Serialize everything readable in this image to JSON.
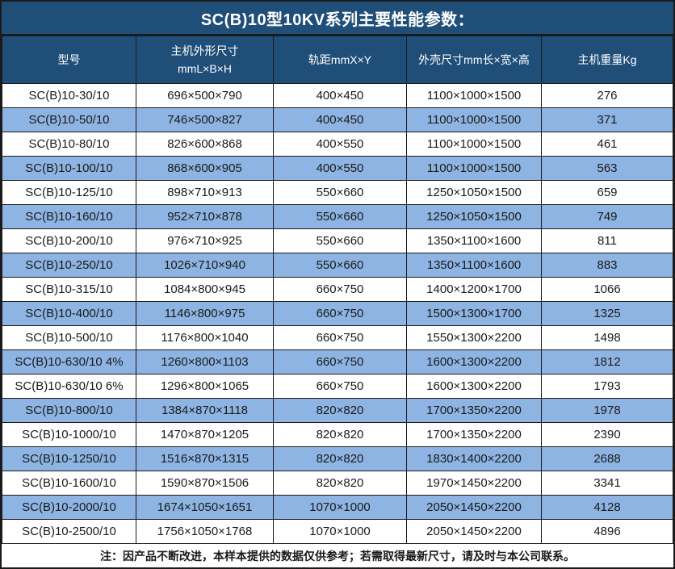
{
  "title": "SC(B)10型10KV系列主要性能参数：",
  "colors": {
    "header_bg": "#1F4E79",
    "row_alt_bg": "#8DB4E2",
    "row_bg": "#FFFFFF",
    "border": "#1A1A1A",
    "header_text": "#FFFFFF",
    "body_text": "#1A1A1A"
  },
  "table": {
    "columns": [
      {
        "label": "型号"
      },
      {
        "label": "主机外形尺寸\nmmL×B×H"
      },
      {
        "label": "轨距mmX×Y"
      },
      {
        "label": "外壳尺寸mm长×宽×高"
      },
      {
        "label": "主机重量Kg"
      }
    ],
    "rows": [
      [
        "SC(B)10-30/10",
        "696×500×790",
        "400×450",
        "1100×1000×1500",
        "276"
      ],
      [
        "SC(B)10-50/10",
        "746×500×827",
        "400×450",
        "1100×1000×1500",
        "371"
      ],
      [
        "SC(B)10-80/10",
        "826×600×868",
        "400×550",
        "1100×1000×1500",
        "461"
      ],
      [
        "SC(B)10-100/10",
        "868×600×905",
        "400×550",
        "1100×1000×1500",
        "563"
      ],
      [
        "SC(B)10-125/10",
        "898×710×913",
        "550×660",
        "1250×1050×1500",
        "659"
      ],
      [
        "SC(B)10-160/10",
        "952×710×878",
        "550×660",
        "1250×1050×1500",
        "749"
      ],
      [
        "SC(B)10-200/10",
        "976×710×925",
        "550×660",
        "1350×1100×1600",
        "811"
      ],
      [
        "SC(B)10-250/10",
        "1026×710×940",
        "550×660",
        "1350×1100×1600",
        "883"
      ],
      [
        "SC(B)10-315/10",
        "1084×800×945",
        "660×750",
        "1400×1200×1700",
        "1066"
      ],
      [
        "SC(B)10-400/10",
        "1146×800×975",
        "660×750",
        "1500×1300×1700",
        "1325"
      ],
      [
        "SC(B)10-500/10",
        "1176×800×1040",
        "660×750",
        "1550×1300×2200",
        "1498"
      ],
      [
        "SC(B)10-630/10 4%",
        "1260×800×1103",
        "660×750",
        "1600×1300×2200",
        "1812"
      ],
      [
        "SC(B)10-630/10 6%",
        "1296×800×1065",
        "660×750",
        "1600×1300×2200",
        "1793"
      ],
      [
        "SC(B)10-800/10",
        "1384×870×1118",
        "820×820",
        "1700×1350×2200",
        "1978"
      ],
      [
        "SC(B)10-1000/10",
        "1470×870×1205",
        "820×820",
        "1700×1350×2200",
        "2390"
      ],
      [
        "SC(B)10-1250/10",
        "1516×870×1315",
        "820×820",
        "1830×1400×2200",
        "2688"
      ],
      [
        "SC(B)10-1600/10",
        "1590×870×1506",
        "820×820",
        "1970×1450×2200",
        "3341"
      ],
      [
        "SC(B)10-2000/10",
        "1674×1050×1651",
        "1070×1000",
        "2050×1450×2200",
        "4128"
      ],
      [
        "SC(B)10-2500/10",
        "1756×1050×1768",
        "1070×1000",
        "2050×1450×2200",
        "4896"
      ]
    ]
  },
  "footer_note": "注：因产品不断改进，本样本提供的数据仅供参考；若需取得最新尺寸，请及时与本公司联系。"
}
